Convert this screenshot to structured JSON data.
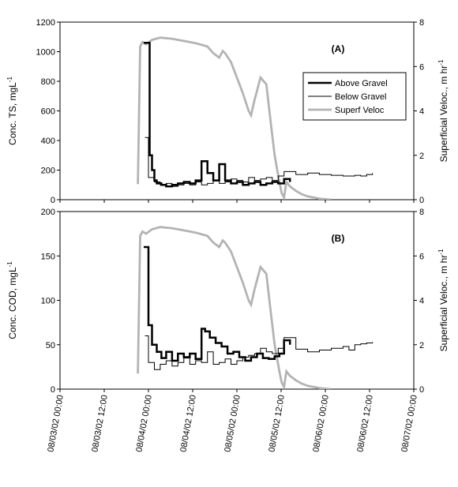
{
  "chart_data": [
    {
      "type": "line",
      "panel_label": "(A)",
      "ylabel": "Conc. TS, mgL",
      "ylabel_sup": "-1",
      "y2label": "Superficial Veloc., m hr",
      "y2label_sup": "-1",
      "ylim": [
        0,
        1200
      ],
      "yticks": [
        0,
        200,
        400,
        600,
        800,
        1000,
        1200
      ],
      "y2lim": [
        0,
        8
      ],
      "y2ticks": [
        0,
        2,
        4,
        6,
        8
      ],
      "legend": {
        "placement": "right",
        "entries": [
          "Above Gravel",
          "Below Gravel",
          "Superf Veloc"
        ]
      },
      "series": [
        {
          "name": "Above Gravel",
          "axis": "left",
          "color": "#000000",
          "style": "step",
          "x": [
            0.71,
            0.73,
            0.76,
            0.78,
            0.8,
            0.82,
            0.86,
            0.9,
            0.95,
            1.0,
            1.05,
            1.1,
            1.15,
            1.2,
            1.25,
            1.3,
            1.35,
            1.4,
            1.45,
            1.5,
            1.55,
            1.6,
            1.65,
            1.7,
            1.75,
            1.8,
            1.85,
            1.9,
            1.95
          ],
          "y": [
            1060,
            1060,
            300,
            200,
            130,
            110,
            100,
            90,
            100,
            110,
            120,
            110,
            130,
            260,
            180,
            130,
            240,
            130,
            110,
            120,
            100,
            110,
            120,
            100,
            110,
            120,
            110,
            140,
            120
          ]
        },
        {
          "name": "Below Gravel",
          "axis": "left",
          "color": "#000000",
          "style": "step",
          "x": [
            0.72,
            0.75,
            0.8,
            0.85,
            0.9,
            0.95,
            1.0,
            1.05,
            1.1,
            1.15,
            1.2,
            1.25,
            1.3,
            1.35,
            1.4,
            1.45,
            1.5,
            1.55,
            1.6,
            1.65,
            1.7,
            1.75,
            1.8,
            1.85,
            1.9,
            2.0,
            2.1,
            2.2,
            2.3,
            2.4,
            2.5,
            2.55,
            2.6,
            2.65
          ],
          "y": [
            420,
            150,
            120,
            100,
            110,
            90,
            100,
            110,
            100,
            120,
            100,
            110,
            130,
            110,
            120,
            140,
            130,
            120,
            150,
            130,
            140,
            150,
            130,
            160,
            190,
            170,
            180,
            170,
            165,
            160,
            165,
            160,
            170,
            180
          ]
        },
        {
          "name": "Superf Veloc",
          "axis": "right",
          "color": "#b3b3b3",
          "style": "line",
          "x": [
            0.66,
            0.68,
            0.7,
            0.73,
            0.78,
            0.85,
            0.95,
            1.05,
            1.15,
            1.25,
            1.3,
            1.35,
            1.38,
            1.4,
            1.45,
            1.5,
            1.55,
            1.6,
            1.62,
            1.65,
            1.7,
            1.75,
            1.78,
            1.82,
            1.86,
            1.88,
            1.9,
            1.92,
            1.95,
            2.0,
            2.05,
            2.1,
            2.2,
            2.3
          ],
          "y": [
            0.7,
            6.9,
            7.1,
            7.0,
            7.2,
            7.3,
            7.25,
            7.15,
            7.05,
            6.9,
            6.6,
            6.4,
            6.7,
            6.6,
            6.2,
            5.5,
            4.8,
            4.0,
            3.8,
            4.5,
            5.5,
            5.2,
            3.8,
            2.0,
            0.8,
            0.3,
            0.1,
            0.8,
            0.6,
            0.4,
            0.25,
            0.15,
            0.05,
            0.0
          ]
        }
      ]
    },
    {
      "type": "line",
      "panel_label": "(B)",
      "ylabel": "Conc. COD, mgL",
      "ylabel_sup": "-1",
      "y2label": "Superficial Veloc., m hr",
      "y2label_sup": "-1",
      "ylim": [
        0,
        200
      ],
      "yticks": [
        0,
        50,
        100,
        150,
        200
      ],
      "y2lim": [
        0,
        8
      ],
      "y2ticks": [
        0,
        2,
        4,
        6,
        8
      ],
      "xlim": [
        0,
        3
      ],
      "xticks": [
        "08/03/02 00:00",
        "08/03/02 12:00",
        "08/04/02 00:00",
        "08/04/02 12:00",
        "08/05/02 00:00",
        "08/05/02 12:00",
        "08/06/02 00:00",
        "08/06/02 12:00",
        "08/07/02 00:00"
      ],
      "series": [
        {
          "name": "Above Gravel",
          "axis": "left",
          "color": "#000000",
          "style": "step",
          "x": [
            0.71,
            0.73,
            0.75,
            0.78,
            0.82,
            0.86,
            0.9,
            0.95,
            1.0,
            1.05,
            1.1,
            1.15,
            1.2,
            1.23,
            1.27,
            1.32,
            1.37,
            1.42,
            1.47,
            1.52,
            1.57,
            1.62,
            1.67,
            1.72,
            1.77,
            1.82,
            1.86,
            1.9,
            1.95
          ],
          "y": [
            160,
            160,
            72,
            50,
            42,
            35,
            42,
            32,
            40,
            36,
            40,
            34,
            68,
            65,
            58,
            52,
            48,
            40,
            42,
            36,
            32,
            36,
            40,
            35,
            34,
            37,
            40,
            55,
            50
          ]
        },
        {
          "name": "Below Gravel",
          "axis": "left",
          "color": "#000000",
          "style": "step",
          "x": [
            0.72,
            0.75,
            0.8,
            0.85,
            0.9,
            0.95,
            1.0,
            1.05,
            1.1,
            1.15,
            1.2,
            1.25,
            1.3,
            1.35,
            1.4,
            1.45,
            1.5,
            1.55,
            1.6,
            1.65,
            1.7,
            1.75,
            1.8,
            1.85,
            1.9,
            2.0,
            2.1,
            2.2,
            2.3,
            2.4,
            2.45,
            2.5,
            2.55,
            2.6,
            2.65
          ],
          "y": [
            60,
            30,
            22,
            28,
            32,
            26,
            30,
            35,
            28,
            32,
            30,
            42,
            28,
            30,
            34,
            28,
            32,
            36,
            38,
            40,
            46,
            42,
            40,
            46,
            58,
            45,
            42,
            44,
            46,
            48,
            44,
            50,
            51,
            52,
            53
          ]
        },
        {
          "name": "Superf Veloc",
          "axis": "right",
          "color": "#b3b3b3",
          "style": "line",
          "x": [
            0.66,
            0.68,
            0.7,
            0.73,
            0.78,
            0.85,
            0.95,
            1.05,
            1.15,
            1.25,
            1.3,
            1.35,
            1.38,
            1.4,
            1.45,
            1.5,
            1.55,
            1.6,
            1.62,
            1.65,
            1.7,
            1.75,
            1.78,
            1.82,
            1.86,
            1.88,
            1.9,
            1.92,
            1.95,
            2.0,
            2.05,
            2.1,
            2.2,
            2.3
          ],
          "y": [
            0.7,
            6.9,
            7.1,
            7.0,
            7.2,
            7.3,
            7.25,
            7.15,
            7.05,
            6.9,
            6.6,
            6.4,
            6.7,
            6.6,
            6.2,
            5.5,
            4.8,
            4.0,
            3.8,
            4.5,
            5.5,
            5.2,
            3.8,
            2.0,
            0.8,
            0.3,
            0.1,
            0.8,
            0.6,
            0.4,
            0.25,
            0.15,
            0.05,
            0.0
          ]
        }
      ]
    }
  ]
}
